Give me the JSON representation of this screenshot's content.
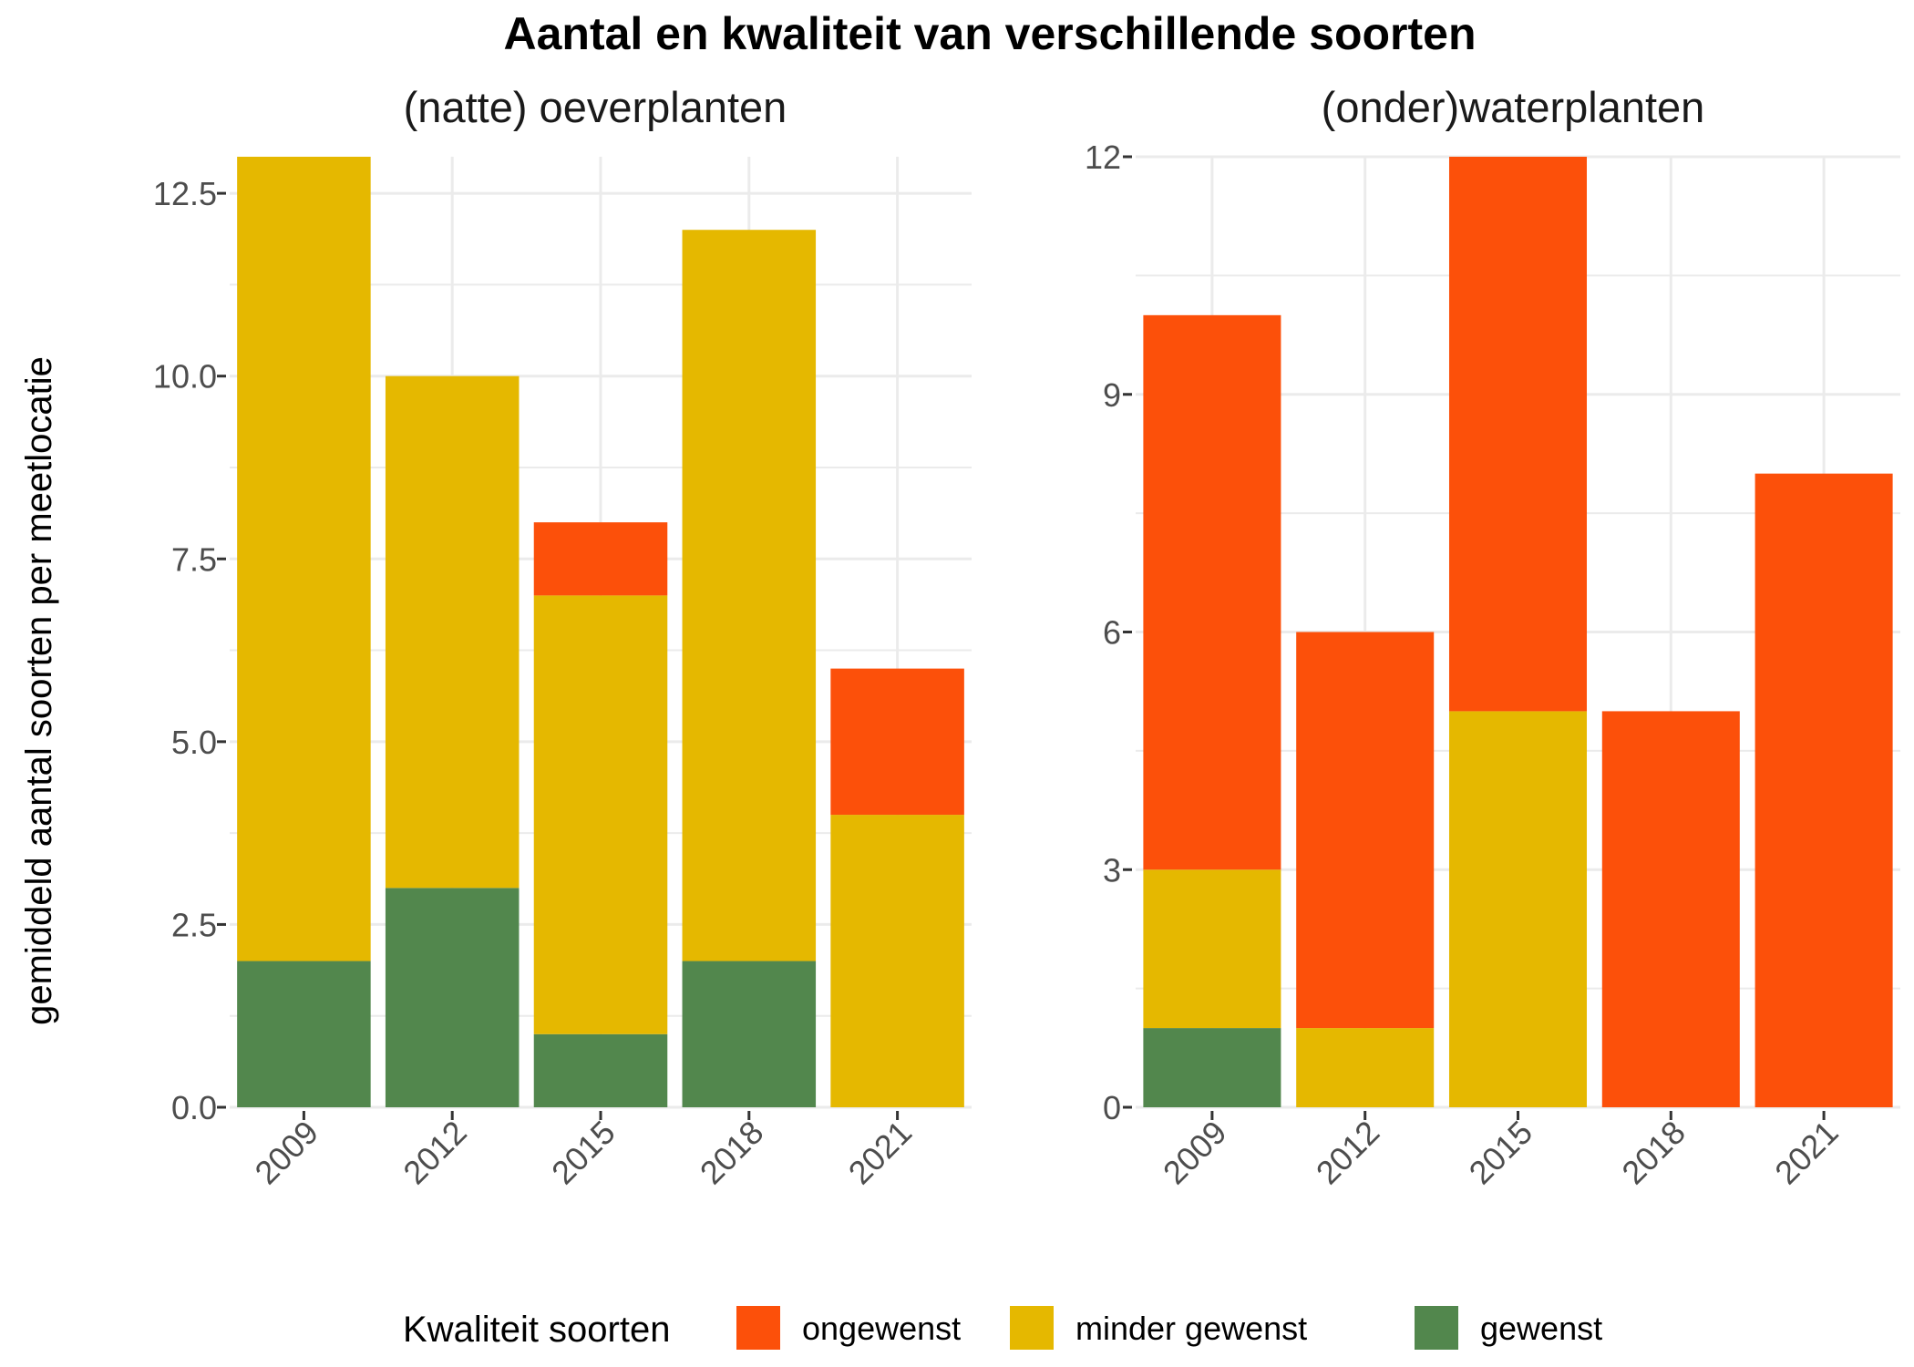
{
  "title": "Aantal en kwaliteit van verschillende soorten",
  "colors": {
    "ongewenst": "#FC500A",
    "minder_gewenst": "#E5B800",
    "gewenst": "#52874D",
    "grid_major": "#ebebeb",
    "grid_minor": "#f5f5f5"
  },
  "legend": {
    "title": "Kwaliteit soorten",
    "position": "bottom",
    "items": [
      {
        "key": "ongewenst",
        "label": "ongewenst"
      },
      {
        "key": "minder_gewenst",
        "label": "minder gewenst"
      },
      {
        "key": "gewenst",
        "label": "gewenst"
      }
    ]
  },
  "chart_data": [
    {
      "type": "bar",
      "stacked": true,
      "title": "(natte) oeverplanten",
      "ylabel": "gemiddeld aantal soorten per meetlocatie",
      "xlabel": "",
      "categories": [
        "2009",
        "2012",
        "2015",
        "2018",
        "2021"
      ],
      "ylim": [
        0,
        13
      ],
      "yticks": [
        "0.0",
        "2.5",
        "5.0",
        "7.5",
        "10.0",
        "12.5"
      ],
      "grid": true,
      "series": [
        {
          "name": "gewenst",
          "values": [
            2,
            3,
            1,
            2,
            0
          ]
        },
        {
          "name": "minder gewenst",
          "values": [
            11,
            7,
            6,
            10,
            4
          ]
        },
        {
          "name": "ongewenst",
          "values": [
            0,
            0,
            1,
            0,
            2
          ]
        }
      ]
    },
    {
      "type": "bar",
      "stacked": true,
      "title": "(onder)waterplanten",
      "xlabel": "",
      "categories": [
        "2009",
        "2012",
        "2015",
        "2018",
        "2021"
      ],
      "ylim": [
        0,
        12
      ],
      "yticks": [
        "0",
        "3",
        "6",
        "9",
        "12"
      ],
      "grid": true,
      "series": [
        {
          "name": "gewenst",
          "values": [
            1,
            0,
            0,
            0,
            0
          ]
        },
        {
          "name": "minder gewenst",
          "values": [
            2,
            1,
            5,
            0,
            0
          ]
        },
        {
          "name": "ongewenst",
          "values": [
            7,
            5,
            7,
            5,
            8
          ]
        }
      ]
    }
  ]
}
